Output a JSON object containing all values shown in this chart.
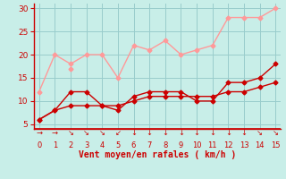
{
  "x": [
    0,
    1,
    2,
    3,
    4,
    5,
    6,
    7,
    8,
    9,
    10,
    11,
    12,
    13,
    14,
    15
  ],
  "series": [
    {
      "name": "light_pink_1",
      "color": "#FF9999",
      "linewidth": 1.0,
      "marker": "D",
      "markersize": 2.5,
      "y": [
        12,
        20,
        18,
        20,
        20,
        15,
        22,
        21,
        23,
        20,
        21,
        22,
        28,
        28,
        28,
        30
      ]
    },
    {
      "name": "light_pink_2",
      "color": "#FF9999",
      "linewidth": 1.0,
      "marker": "D",
      "markersize": 2.5,
      "y": [
        null,
        null,
        17,
        null,
        null,
        null,
        null,
        null,
        null,
        null,
        null,
        null,
        null,
        null,
        null,
        null
      ]
    },
    {
      "name": "dark_red_smooth",
      "color": "#CC0000",
      "linewidth": 1.0,
      "marker": "D",
      "markersize": 2.5,
      "y": [
        6,
        8,
        9,
        9,
        9,
        9,
        10,
        11,
        11,
        11,
        11,
        11,
        12,
        12,
        13,
        14
      ]
    },
    {
      "name": "dark_red_jagged",
      "color": "#CC0000",
      "linewidth": 1.0,
      "marker": "D",
      "markersize": 2.5,
      "y": [
        6,
        8,
        12,
        12,
        9,
        8,
        11,
        12,
        12,
        12,
        10,
        10,
        14,
        14,
        15,
        18
      ]
    }
  ],
  "xlim": [
    0,
    15
  ],
  "ylim": [
    4,
    31
  ],
  "yticks": [
    5,
    10,
    15,
    20,
    25,
    30
  ],
  "xticks": [
    0,
    1,
    2,
    3,
    4,
    5,
    6,
    7,
    8,
    9,
    10,
    11,
    12,
    13,
    14,
    15
  ],
  "xlabel": "Vent moyen/en rafales ( km/h )",
  "background_color": "#C8EEE8",
  "grid_color": "#99CCCC",
  "axis_color": "#CC0000",
  "label_color": "#CC0000",
  "arrow_symbols": [
    "→",
    "→",
    "↘",
    "↘",
    "↘",
    "↙",
    "↓",
    "↓",
    "↓",
    "↓",
    "↓",
    "↓",
    "↓",
    "↓",
    "↘",
    "↘"
  ]
}
